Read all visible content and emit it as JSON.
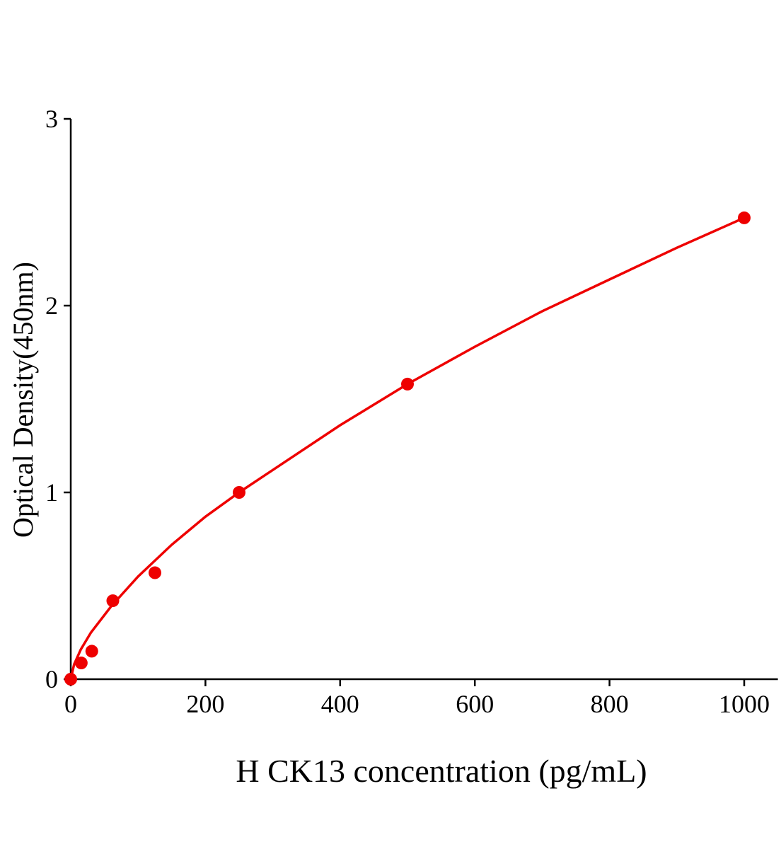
{
  "chart_data": {
    "type": "scatter",
    "title": "",
    "xlabel": "H CK13 concentration (pg/mL)",
    "ylabel": "Optical Density(450nm)",
    "xlim": [
      0,
      1050
    ],
    "ylim": [
      0,
      3
    ],
    "xticks": [
      0,
      200,
      400,
      600,
      800,
      1000
    ],
    "yticks": [
      0,
      1,
      2,
      3
    ],
    "grid": false,
    "color": "#ee0000",
    "points": [
      {
        "x": 0,
        "y": 0.0
      },
      {
        "x": 15.6,
        "y": 0.087
      },
      {
        "x": 31.25,
        "y": 0.15
      },
      {
        "x": 62.5,
        "y": 0.42
      },
      {
        "x": 125,
        "y": 0.57
      },
      {
        "x": 250,
        "y": 1.0
      },
      {
        "x": 500,
        "y": 1.58
      },
      {
        "x": 1000,
        "y": 2.47
      }
    ],
    "fit_curve": {
      "x": [
        0,
        5,
        15,
        30,
        60,
        100,
        150,
        200,
        250,
        300,
        400,
        500,
        600,
        700,
        800,
        900,
        1000
      ],
      "y": [
        0,
        0.08,
        0.16,
        0.25,
        0.39,
        0.55,
        0.72,
        0.87,
        1.0,
        1.12,
        1.36,
        1.58,
        1.78,
        1.97,
        2.14,
        2.31,
        2.47
      ]
    }
  }
}
